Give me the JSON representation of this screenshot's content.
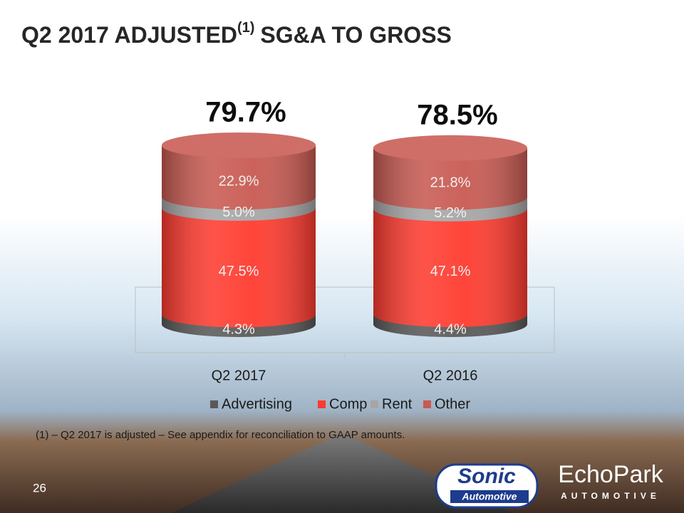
{
  "chart_data": {
    "type": "stacked_cylinder",
    "title": "Q2 2017 ADJUSTED",
    "title_superscript": "(1)",
    "title_suffix": "SG&A TO GROSS",
    "categories": [
      "Q2 2017",
      "Q2 2016"
    ],
    "series": [
      {
        "name": "Advertising",
        "color": "#595959",
        "values": [
          4.3,
          4.4
        ],
        "value_labels": [
          "4.3%",
          "4.4%"
        ]
      },
      {
        "name": "Comp",
        "color": "#ff3b2f",
        "values": [
          47.5,
          47.1
        ],
        "value_labels": [
          "47.5%",
          "47.1%"
        ]
      },
      {
        "name": "Rent",
        "color": "#a6a6a6",
        "values": [
          5.0,
          5.2
        ],
        "value_labels": [
          "5.0%",
          "5.2%"
        ]
      },
      {
        "name": "Other",
        "color": "#c85a52",
        "values": [
          22.9,
          21.8
        ],
        "value_labels": [
          "22.9%",
          "21.8%"
        ]
      }
    ],
    "totals": [
      79.7,
      78.5
    ],
    "total_labels": [
      "79.7%",
      "78.5%"
    ],
    "legend": "bottom"
  },
  "footnote": "(1) – Q2 2017 is adjusted – See appendix for reconciliation to GAAP amounts.",
  "page_number": "26",
  "logos": {
    "sonic": "Sonic",
    "sonic_sub": "Automotive",
    "echopark": "EchoPark",
    "echopark_sub": "AUTOMOTIVE"
  }
}
